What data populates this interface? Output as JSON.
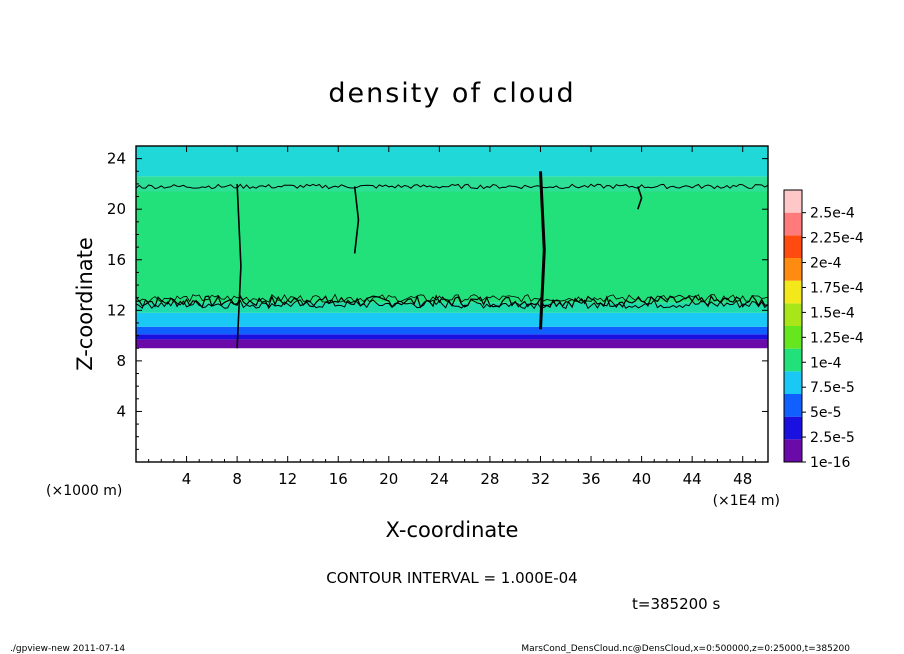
{
  "chart_data": {
    "type": "heatmap",
    "title": "density of cloud",
    "xlabel": "X-coordinate",
    "ylabel": "Z-coordinate",
    "x_units_label": "(×1E4 m)",
    "y_units_label": "(×1000 m)",
    "xlim": [
      0,
      50
    ],
    "ylim": [
      0,
      25
    ],
    "xticks": [
      4,
      8,
      12,
      16,
      20,
      24,
      28,
      32,
      36,
      40,
      44,
      48
    ],
    "yticks": [
      4,
      8,
      12,
      16,
      20,
      24
    ],
    "grid": false,
    "legend_placement": "right",
    "colorbar": {
      "labels": [
        "1e-16",
        "2.5e-5",
        "5e-5",
        "7.5e-5",
        "1e-4",
        "1.25e-4",
        "1.5e-4",
        "1.75e-4",
        "2e-4",
        "2.25e-4",
        "2.5e-4"
      ],
      "colors": [
        "#6a0aa8",
        "#1a10e0",
        "#1060ff",
        "#19c8f5",
        "#22e07a",
        "#66e61f",
        "#a8e619",
        "#f3e81a",
        "#ff8c10",
        "#ff4b0f",
        "#ff7a7a",
        "#ffc8c8"
      ]
    },
    "cloud_base_z": 9.0,
    "cloud_top_z": 25.0,
    "dark_band_lower_z": 12.7,
    "dark_band_upper_z": 21.8,
    "features": [
      {
        "x": 8.0,
        "z_min": 9.0,
        "z_max": 22.0
      },
      {
        "x": 17.3,
        "z_min": 16.5,
        "z_max": 21.8
      },
      {
        "x": 32.0,
        "z_min": 10.5,
        "z_max": 23.0
      },
      {
        "x": 39.7,
        "z_min": 20.0,
        "z_max": 21.8
      }
    ],
    "contour_interval_label": "CONTOUR INTERVAL = 1.000E-04",
    "time_label": "t=385200 s"
  },
  "footer": {
    "left": "./gpview-new  2011-07-14",
    "right": "MarsCond_DensCloud.nc@DensCloud,x=0:500000,z=0:25000,t=385200"
  }
}
